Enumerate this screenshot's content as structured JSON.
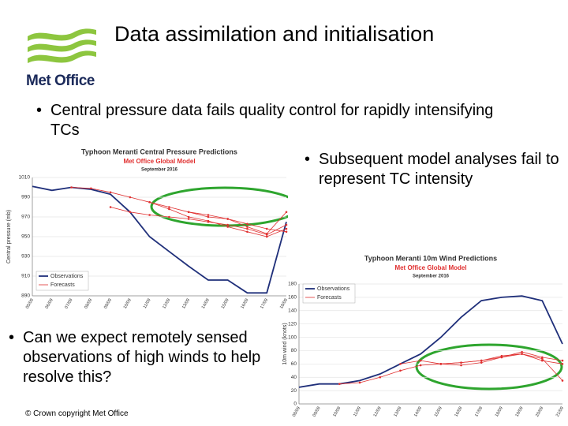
{
  "header": {
    "title": "Data assimilation and initialisation",
    "logo": "Met Office"
  },
  "bullets": [
    "Central pressure data fails quality control for rapidly intensifying TCs",
    "Subsequent model analyses fail to represent TC intensity",
    "Can we expect remotely sensed observations of high winds to help resolve this?"
  ],
  "footer": "© Crown copyright   Met Office",
  "charts": [
    {
      "type": "line",
      "title": "Typhoon Meranti Central Pressure Predictions",
      "subtitle": "Met Office Global Model",
      "date": "September 2016",
      "ylabel": "Central pressure (mb)",
      "categories": [
        "05/09",
        "06/09",
        "07/09",
        "08/09",
        "09/09",
        "10/09",
        "11/09",
        "12/09",
        "13/09",
        "14/09",
        "15/09",
        "16/09",
        "17/09",
        "18/09"
      ],
      "ylim": [
        890,
        1010
      ],
      "yticks": [
        890,
        910,
        930,
        950,
        970,
        990,
        1010
      ],
      "legend": "lower left",
      "series": [
        {
          "name": "Observations",
          "color": "#1f2f7a",
          "values": [
            1001,
            997,
            1000,
            998,
            993,
            975,
            950,
            935,
            920,
            906,
            906,
            893,
            893,
            965
          ]
        },
        {
          "name": "Forecasts",
          "color": "#e03030",
          "values": [
            null,
            null,
            1000,
            999,
            995,
            990,
            985,
            980,
            975,
            970,
            968,
            963,
            958,
            955
          ]
        },
        {
          "color": "#e03030",
          "values": [
            null,
            null,
            null,
            null,
            980,
            975,
            972,
            970,
            968,
            965,
            962,
            958,
            952,
            962
          ]
        },
        {
          "color": "#e03030",
          "values": [
            null,
            null,
            null,
            null,
            null,
            null,
            985,
            978,
            970,
            966,
            960,
            955,
            950,
            958
          ]
        },
        {
          "color": "#e03030",
          "values": [
            null,
            null,
            null,
            null,
            null,
            null,
            null,
            null,
            975,
            972,
            968,
            960,
            953,
            975
          ]
        }
      ]
    },
    {
      "type": "line",
      "title": "Typhoon Meranti 10m Wind Predictions",
      "subtitle": "Met Office Global Model",
      "date": "September 2016",
      "ylabel": "10m wind (knots)",
      "categories": [
        "08/09",
        "09/09",
        "10/09",
        "11/09",
        "12/09",
        "13/09",
        "14/09",
        "15/09",
        "16/09",
        "17/09",
        "18/09",
        "19/09",
        "20/09",
        "21/09"
      ],
      "ylim": [
        0,
        180
      ],
      "yticks": [
        0,
        20,
        40,
        60,
        80,
        100,
        120,
        140,
        160,
        180
      ],
      "legend": "upper left",
      "series": [
        {
          "name": "Observations",
          "color": "#1f2f7a",
          "values": [
            25,
            30,
            30,
            35,
            45,
            60,
            75,
            100,
            130,
            155,
            160,
            162,
            155,
            90
          ]
        },
        {
          "name": "Forecasts",
          "color": "#e03030",
          "values": [
            null,
            null,
            30,
            32,
            40,
            50,
            58,
            60,
            62,
            65,
            70,
            75,
            65,
            60
          ]
        },
        {
          "color": "#e03030",
          "values": [
            null,
            null,
            null,
            null,
            null,
            60,
            65,
            60,
            58,
            62,
            70,
            78,
            70,
            65
          ]
        },
        {
          "color": "#e03030",
          "values": [
            null,
            null,
            null,
            null,
            null,
            null,
            null,
            60,
            62,
            65,
            72,
            75,
            68,
            35
          ]
        }
      ]
    }
  ]
}
